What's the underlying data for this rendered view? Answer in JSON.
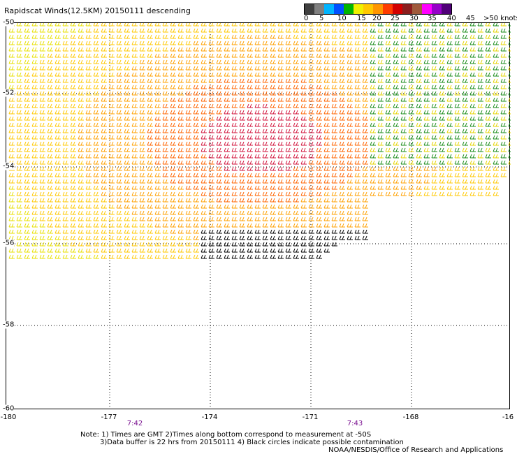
{
  "header": {
    "title": "Rapidscat Winds(12.5KM) 20150111 descending"
  },
  "legend": {
    "colors": [
      "#404040",
      "#808080",
      "#00b4ff",
      "#0050ff",
      "#00b400",
      "#f0f000",
      "#ffc800",
      "#ff9600",
      "#ff3c00",
      "#d20000",
      "#8c1e1e",
      "#a05a3c",
      "#ff00ff",
      "#9600c8",
      "#500078"
    ],
    "labels": [
      "0",
      "5",
      "10",
      "15",
      "20",
      "25",
      "30",
      "35",
      "40",
      "45",
      ">50 knots"
    ]
  },
  "axes": {
    "x_ticks": [
      "-180",
      "-177",
      "-174",
      "-171",
      "-168",
      "-16"
    ],
    "y_ticks": [
      "-50",
      "-52",
      "-54",
      "-56",
      "-58",
      "-60"
    ]
  },
  "time_labels": [
    "7:42",
    "7:43"
  ],
  "notes": {
    "line1": "Note: 1) Times are GMT 2)Times along bottom correspond to measurement at -50S",
    "line2": "3)Data buffer is 22 hrs from 20150111 4) Black circles indicate possible contamination",
    "line3": "NOAA/NESDIS/Office of Research and Applications"
  }
}
